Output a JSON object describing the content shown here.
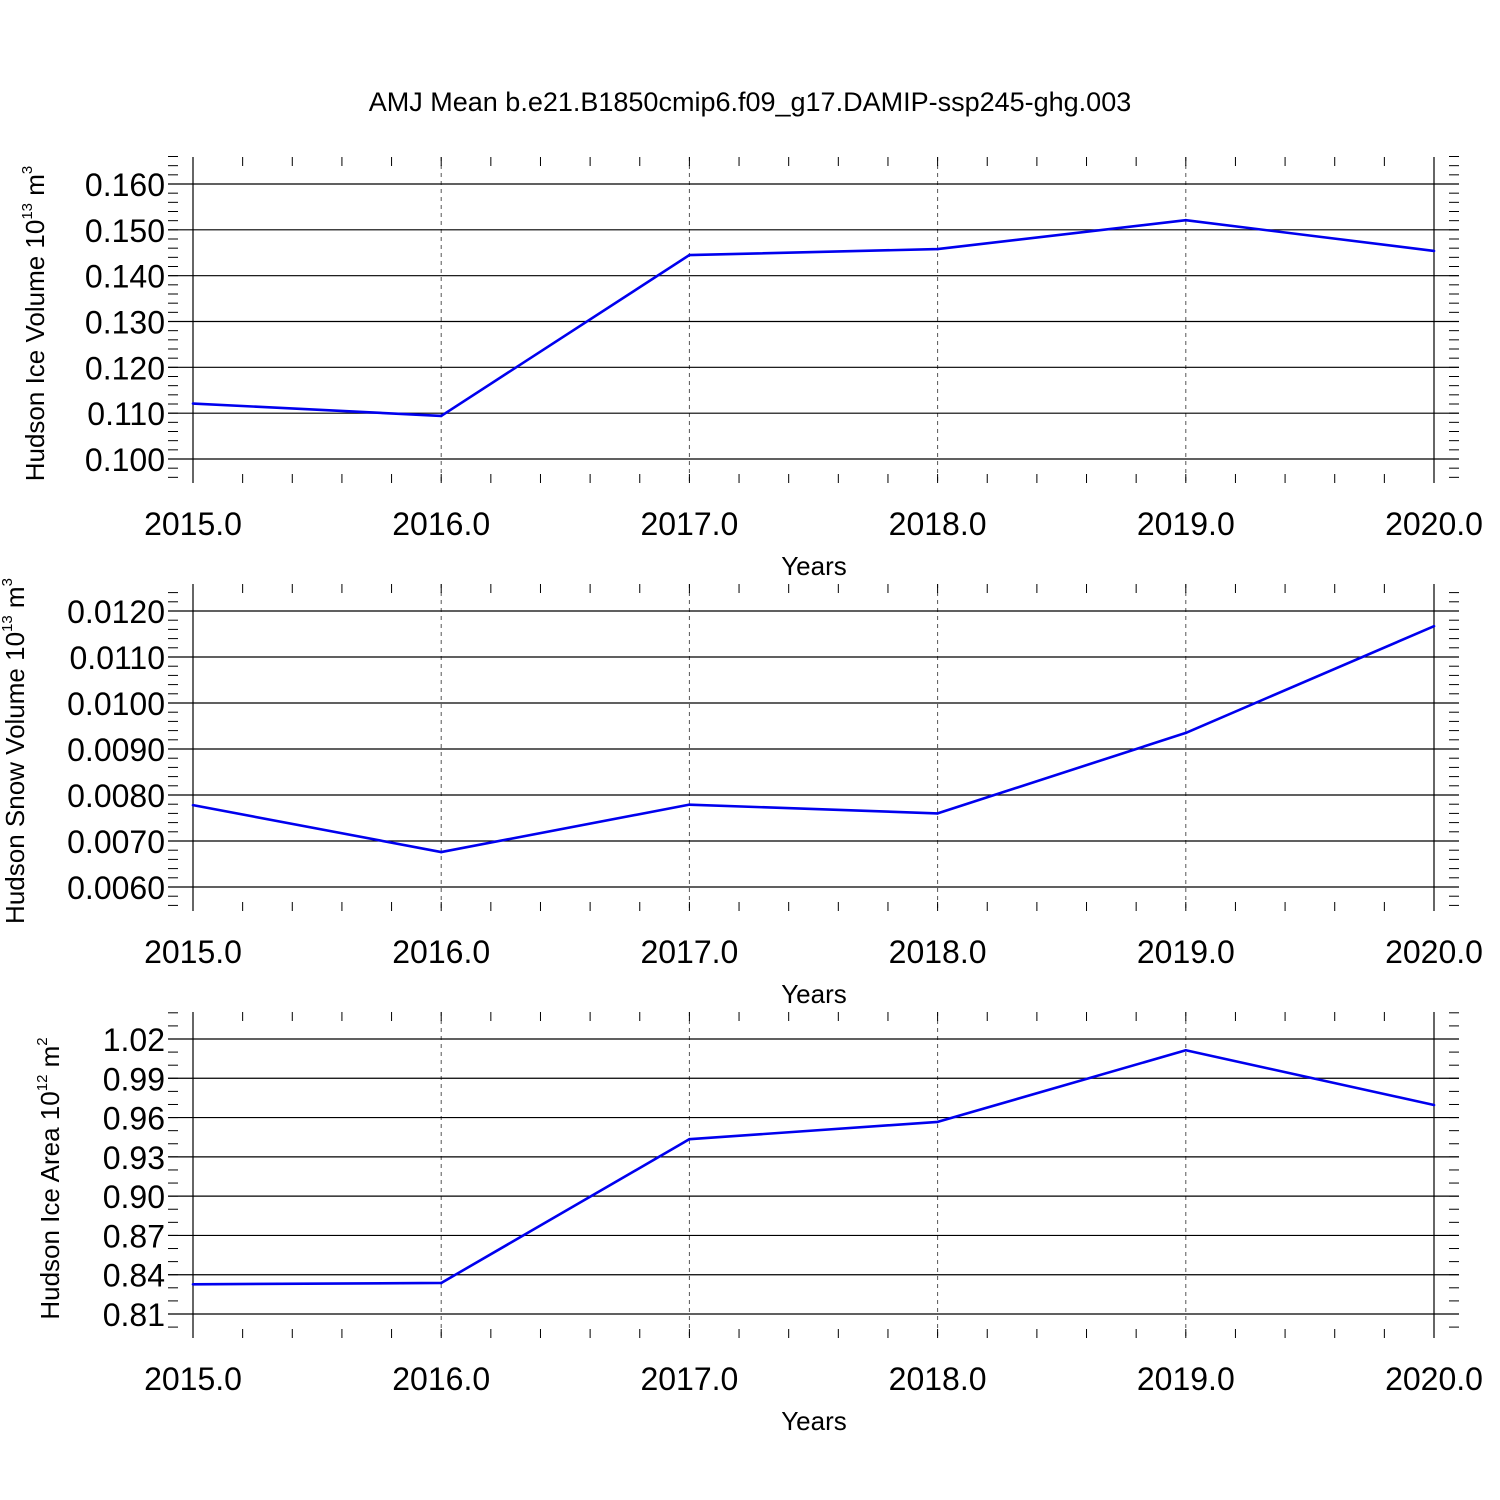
{
  "title": "AMJ Mean b.e21.B1850cmip6.f09_g17.DAMIP-ssp245-ghg.003",
  "colors": {
    "line": "#0000ee",
    "axis": "#000000",
    "grid": "#555555",
    "background": "#ffffff"
  },
  "chart_data": [
    {
      "type": "line",
      "xlabel": "Years",
      "ylabel": {
        "text": "Hudson Ice Volume 10",
        "exp": "13",
        "unit": " m",
        "unit_exp": "3"
      },
      "xlim": [
        2015,
        2020
      ],
      "ylim": [
        0.1,
        0.16
      ],
      "x_ticks": [
        2015,
        2016,
        2017,
        2018,
        2019,
        2020
      ],
      "x_tick_labels": [
        "2015.0",
        "2016.0",
        "2017.0",
        "2018.0",
        "2019.0",
        "2020.0"
      ],
      "y_ticks": [
        0.1,
        0.11,
        0.12,
        0.13,
        0.14,
        0.15,
        0.16
      ],
      "y_tick_labels": [
        "0.100",
        "0.110",
        "0.120",
        "0.130",
        "0.140",
        "0.150",
        "0.160"
      ],
      "x_minor_ticks": 5,
      "y_minor_ticks": 5,
      "x_grid": true,
      "x": [
        2015,
        2016,
        2017,
        2018,
        2019,
        2020
      ],
      "y": [
        0.1121,
        0.1094,
        0.1445,
        0.1458,
        0.1521,
        0.1454
      ]
    },
    {
      "type": "line",
      "xlabel": "Years",
      "ylabel": {
        "text": "Hudson Snow Volume 10",
        "exp": "13",
        "unit": " m",
        "unit_exp": "3"
      },
      "xlim": [
        2015,
        2020
      ],
      "ylim": [
        0.006,
        0.012
      ],
      "x_ticks": [
        2015,
        2016,
        2017,
        2018,
        2019,
        2020
      ],
      "x_tick_labels": [
        "2015.0",
        "2016.0",
        "2017.0",
        "2018.0",
        "2019.0",
        "2020.0"
      ],
      "y_ticks": [
        0.006,
        0.007,
        0.008,
        0.009,
        0.01,
        0.011,
        0.012
      ],
      "y_tick_labels": [
        "0.0060",
        "0.0070",
        "0.0080",
        "0.0090",
        "0.0100",
        "0.0110",
        "0.0120"
      ],
      "x_minor_ticks": 5,
      "y_minor_ticks": 5,
      "x_grid": true,
      "x": [
        2015,
        2016,
        2017,
        2018,
        2019,
        2020
      ],
      "y": [
        0.00778,
        0.00676,
        0.00779,
        0.0076,
        0.00935,
        0.01167
      ]
    },
    {
      "type": "line",
      "xlabel": "Years",
      "ylabel": {
        "text": "Hudson Ice Area 10",
        "exp": "12",
        "unit": " m",
        "unit_exp": "2"
      },
      "xlim": [
        2015,
        2020
      ],
      "ylim": [
        0.81,
        1.02
      ],
      "x_ticks": [
        2015,
        2016,
        2017,
        2018,
        2019,
        2020
      ],
      "x_tick_labels": [
        "2015.0",
        "2016.0",
        "2017.0",
        "2018.0",
        "2019.0",
        "2020.0"
      ],
      "y_ticks": [
        0.81,
        0.84,
        0.87,
        0.9,
        0.93,
        0.96,
        0.99,
        1.02
      ],
      "y_tick_labels": [
        "0.81",
        "0.84",
        "0.87",
        "0.90",
        "0.93",
        "0.96",
        "0.99",
        "1.02"
      ],
      "x_minor_ticks": 5,
      "y_minor_ticks": 3,
      "x_grid": true,
      "x": [
        2015,
        2016,
        2017,
        2018,
        2019,
        2020
      ],
      "y": [
        0.8327,
        0.8337,
        0.9435,
        0.9567,
        1.0114,
        0.9696
      ]
    }
  ]
}
